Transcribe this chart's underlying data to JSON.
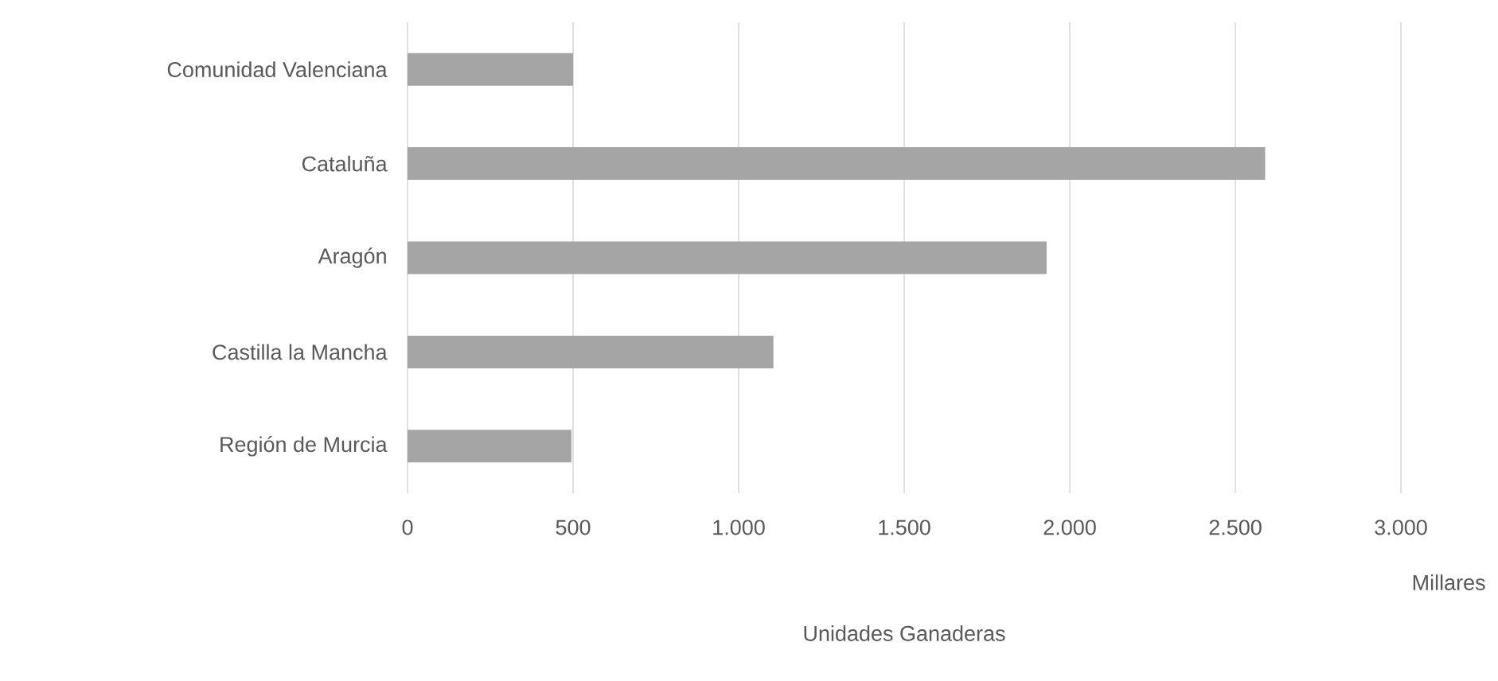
{
  "chart_data": {
    "type": "bar",
    "orientation": "horizontal",
    "categories": [
      "Comunidad Valenciana",
      "Cataluña",
      "Aragón",
      "Castilla la Mancha",
      "Región de Murcia"
    ],
    "values": [
      500,
      2590,
      1930,
      1105,
      495
    ],
    "color": "#a5a5a5",
    "xlabel": "Unidades Ganaderas",
    "annotations": [
      "Millares"
    ],
    "xlim": [
      0,
      3000
    ],
    "xticks": [
      {
        "value": 0,
        "label": "0"
      },
      {
        "value": 500,
        "label": "500"
      },
      {
        "value": 1000,
        "label": "1.000"
      },
      {
        "value": 1500,
        "label": "1.500"
      },
      {
        "value": 2000,
        "label": "2.000"
      },
      {
        "value": 2500,
        "label": "2.500"
      },
      {
        "value": 3000,
        "label": "3.000"
      }
    ],
    "grid": "x"
  }
}
